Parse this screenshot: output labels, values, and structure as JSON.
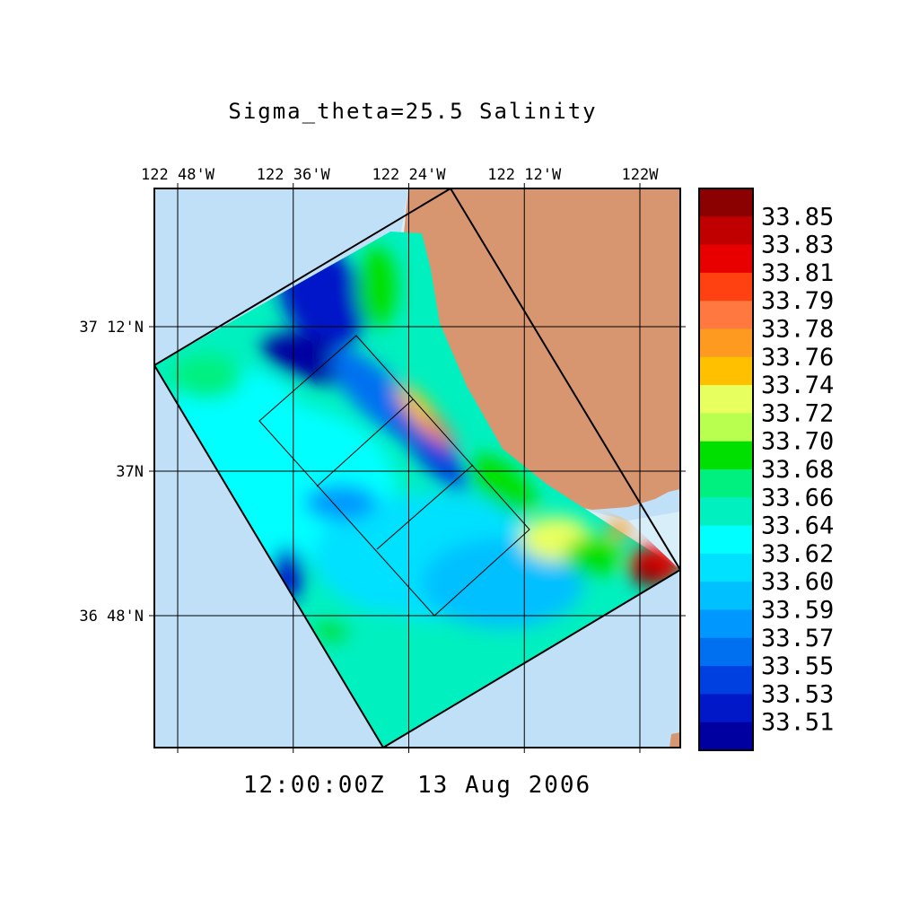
{
  "title": "Sigma_theta=25.5 Salinity",
  "timestamp": "12:00:00Z  13 Aug 2006",
  "lon_ticks": [
    {
      "label": "122 48'W",
      "lon": -122.8
    },
    {
      "label": "122 36'W",
      "lon": -122.6
    },
    {
      "label": "122 24'W",
      "lon": -122.4
    },
    {
      "label": "122 12'W",
      "lon": -122.2
    },
    {
      "label": "122W",
      "lon": -122.0
    }
  ],
  "lat_ticks": [
    {
      "label": "37 12'N",
      "lat": 37.2
    },
    {
      "label": "37N",
      "lat": 37.0
    },
    {
      "label": "36 48'N",
      "lat": 36.8
    }
  ],
  "colorbar": {
    "labels": [
      "33.85",
      "33.83",
      "33.81",
      "33.79",
      "33.78",
      "33.76",
      "33.74",
      "33.72",
      "33.70",
      "33.68",
      "33.66",
      "33.64",
      "33.62",
      "33.60",
      "33.59",
      "33.57",
      "33.55",
      "33.53",
      "33.51"
    ],
    "colors": [
      "#8b0000",
      "#c00000",
      "#e80000",
      "#ff4010",
      "#ff7840",
      "#ff9a20",
      "#ffc000",
      "#e8ff60",
      "#b8ff50",
      "#00e000",
      "#00f080",
      "#00f0c0",
      "#00ffff",
      "#00e0ff",
      "#00c0ff",
      "#0098ff",
      "#0070f0",
      "#0040e0",
      "#0018c8",
      "#0000a0"
    ]
  },
  "colors": {
    "ocean": "#c0e0f8",
    "land": "#d89670",
    "shelf": "#d8eef8"
  }
}
